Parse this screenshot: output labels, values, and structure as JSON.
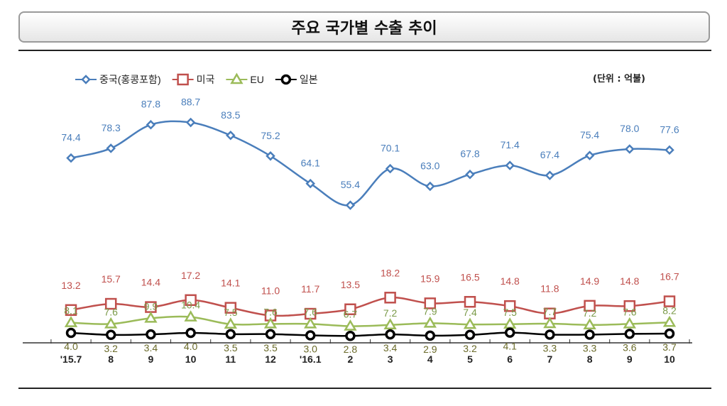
{
  "title": "주요 국가별 수출 추이",
  "unit_label": "(단위 : 억불)",
  "chart_data": {
    "type": "line",
    "categories": [
      "'15.7",
      "8",
      "9",
      "10",
      "11",
      "12",
      "'16.1",
      "2",
      "3",
      "4",
      "5",
      "6",
      "7",
      "8",
      "9",
      "10"
    ],
    "ylim": [
      0,
      100
    ],
    "grid": false,
    "legend_position": "top-left",
    "series": [
      {
        "name": "중국(홍콩포함)",
        "color": "#4a7ebb",
        "marker": "diamond",
        "values": [
          74.4,
          78.3,
          87.8,
          88.7,
          83.5,
          75.2,
          64.1,
          55.4,
          70.1,
          63.0,
          67.8,
          71.4,
          67.4,
          75.4,
          78.0,
          77.6
        ]
      },
      {
        "name": "미국",
        "color": "#c0504d",
        "marker": "square",
        "values": [
          13.2,
          15.7,
          14.4,
          17.2,
          14.1,
          11.0,
          11.7,
          13.5,
          18.2,
          15.9,
          16.5,
          14.8,
          11.8,
          14.9,
          14.8,
          16.7
        ]
      },
      {
        "name": "EU",
        "color": "#9bbb59",
        "marker": "triangle",
        "values": [
          8.1,
          7.6,
          9.9,
          10.4,
          7.5,
          7.6,
          7.6,
          6.7,
          7.2,
          7.9,
          7.4,
          7.5,
          7.7,
          7.2,
          7.6,
          8.2
        ]
      },
      {
        "name": "일본",
        "color": "#000000",
        "marker": "circle",
        "values": [
          4.0,
          3.2,
          3.4,
          4.0,
          3.5,
          3.5,
          3.0,
          2.8,
          3.4,
          2.9,
          3.2,
          4.1,
          3.3,
          3.3,
          3.6,
          3.7
        ]
      }
    ]
  }
}
